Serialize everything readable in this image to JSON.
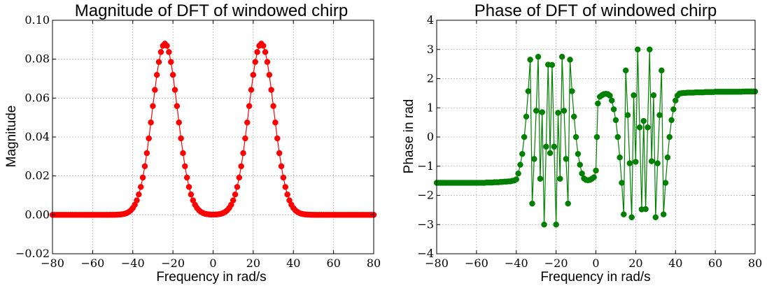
{
  "chart_data": [
    {
      "type": "line",
      "title": "Magnitude of DFT of windowed chirp",
      "xlabel": "Frequency in rad/s",
      "ylabel": "Magnitude",
      "xlim": [
        -80,
        80
      ],
      "ylim": [
        -0.02,
        0.1
      ],
      "xticks": [
        -80,
        -60,
        -40,
        -20,
        0,
        20,
        40,
        60,
        80
      ],
      "xtick_labels": [
        "−80",
        "−60",
        "−40",
        "−20",
        "0",
        "20",
        "40",
        "60",
        "80"
      ],
      "yticks": [
        -0.02,
        0.0,
        0.02,
        0.04,
        0.06,
        0.08,
        0.1
      ],
      "ytick_labels": [
        "−0.02",
        "0.00",
        "0.02",
        "0.04",
        "0.06",
        "0.08",
        "0.10"
      ],
      "grid": true,
      "color": "#ff0000",
      "marker": "circle",
      "model": {
        "kind": "twin_gaussian",
        "amplitude": 0.088,
        "center": 24,
        "sigma": 6.3,
        "step": 1
      },
      "series": [
        {
          "values": []
        }
      ]
    },
    {
      "type": "line",
      "title": "Phase of DFT of windowed chirp",
      "xlabel": "Frequency in rad/s",
      "ylabel": "Phase in rad",
      "xlim": [
        -80,
        80
      ],
      "ylim": [
        -4,
        4
      ],
      "xticks": [
        -80,
        -60,
        -40,
        -20,
        0,
        20,
        40,
        60,
        80
      ],
      "xtick_labels": [
        "−80",
        "−60",
        "−40",
        "−20",
        "0",
        "20",
        "40",
        "60",
        "80"
      ],
      "yticks": [
        -4,
        -3,
        -2,
        -1,
        0,
        1,
        2,
        3,
        4
      ],
      "ytick_labels": [
        "−4",
        "−3",
        "−2",
        "−1",
        "0",
        "1",
        "2",
        "3",
        "4"
      ],
      "grid": true,
      "color": "#008000",
      "marker": "circle",
      "series": [
        {
          "points": [
            [
              -80,
              -1.57
            ],
            [
              -79,
              -1.57
            ],
            [
              -78,
              -1.57
            ],
            [
              -77,
              -1.57
            ],
            [
              -76,
              -1.57
            ],
            [
              -75,
              -1.57
            ],
            [
              -74,
              -1.57
            ],
            [
              -73,
              -1.57
            ],
            [
              -72,
              -1.57
            ],
            [
              -71,
              -1.57
            ],
            [
              -70,
              -1.57
            ],
            [
              -69,
              -1.57
            ],
            [
              -68,
              -1.57
            ],
            [
              -67,
              -1.57
            ],
            [
              -66,
              -1.57
            ],
            [
              -65,
              -1.57
            ],
            [
              -64,
              -1.57
            ],
            [
              -63,
              -1.57
            ],
            [
              -62,
              -1.57
            ],
            [
              -61,
              -1.57
            ],
            [
              -60,
              -1.57
            ],
            [
              -59,
              -1.57
            ],
            [
              -58,
              -1.57
            ],
            [
              -57,
              -1.57
            ],
            [
              -56,
              -1.57
            ],
            [
              -55,
              -1.56
            ],
            [
              -54,
              -1.56
            ],
            [
              -53,
              -1.56
            ],
            [
              -52,
              -1.56
            ],
            [
              -51,
              -1.55
            ],
            [
              -50,
              -1.55
            ],
            [
              -49,
              -1.55
            ],
            [
              -48,
              -1.54
            ],
            [
              -47,
              -1.54
            ],
            [
              -46,
              -1.53
            ],
            [
              -45,
              -1.53
            ],
            [
              -44,
              -1.52
            ],
            [
              -43,
              -1.52
            ],
            [
              -42,
              -1.5
            ],
            [
              -41,
              -1.49
            ],
            [
              -40,
              -1.45
            ],
            [
              -39,
              -1.25
            ],
            [
              -38,
              -0.95
            ],
            [
              -37,
              -0.58
            ],
            [
              -36,
              0.0
            ],
            [
              -35,
              0.7
            ],
            [
              -34,
              1.57
            ],
            [
              -33,
              2.65
            ],
            [
              -32,
              -2.28
            ],
            [
              -31,
              -0.75
            ],
            [
              -30,
              0.9
            ],
            [
              -29,
              2.75
            ],
            [
              -28,
              -1.43
            ],
            [
              -27,
              0.85
            ],
            [
              -26,
              -3.0
            ],
            [
              -25,
              -0.33
            ],
            [
              -24,
              2.48
            ],
            [
              -23,
              -0.55
            ],
            [
              -22,
              2.47
            ],
            [
              -21,
              -0.33
            ],
            [
              -20,
              -3.0
            ],
            [
              -19,
              0.83
            ],
            [
              -18,
              -1.43
            ],
            [
              -17,
              2.75
            ],
            [
              -16,
              0.9
            ],
            [
              -15,
              -0.75
            ],
            [
              -14,
              -2.28
            ],
            [
              -13,
              2.65
            ],
            [
              -12,
              1.57
            ],
            [
              -11,
              0.7
            ],
            [
              -10,
              0.0
            ],
            [
              -9,
              -0.58
            ],
            [
              -8,
              -0.95
            ],
            [
              -7,
              -1.25
            ],
            [
              -6,
              -1.42
            ],
            [
              -5,
              -1.47
            ],
            [
              -4,
              -1.48
            ],
            [
              -3,
              -1.47
            ],
            [
              -2,
              -1.43
            ],
            [
              -1,
              -1.38
            ],
            [
              0,
              -1.15
            ],
            [
              0.5,
              0.0
            ],
            [
              1,
              1.15
            ],
            [
              2,
              1.38
            ],
            [
              3,
              1.43
            ],
            [
              4,
              1.47
            ],
            [
              5,
              1.48
            ],
            [
              6,
              1.47
            ],
            [
              7,
              1.42
            ],
            [
              8,
              1.25
            ],
            [
              9,
              0.95
            ],
            [
              10,
              0.58
            ],
            [
              11,
              0.0
            ],
            [
              12,
              -0.7
            ],
            [
              13,
              -1.57
            ],
            [
              14,
              -2.65
            ],
            [
              15,
              2.28
            ],
            [
              16,
              0.75
            ],
            [
              17,
              -0.9
            ],
            [
              18,
              -2.75
            ],
            [
              19,
              1.43
            ],
            [
              20,
              -0.85
            ],
            [
              21,
              3.0
            ],
            [
              22,
              0.33
            ],
            [
              23,
              -2.48
            ],
            [
              24,
              0.55
            ],
            [
              25,
              -2.47
            ],
            [
              26,
              0.33
            ],
            [
              27,
              3.0
            ],
            [
              28,
              -0.83
            ],
            [
              29,
              1.43
            ],
            [
              30,
              -2.75
            ],
            [
              31,
              -0.9
            ],
            [
              32,
              0.75
            ],
            [
              33,
              2.28
            ],
            [
              34,
              -2.65
            ],
            [
              35,
              -1.57
            ],
            [
              36,
              -0.7
            ],
            [
              37,
              0.0
            ],
            [
              38,
              0.58
            ],
            [
              39,
              0.95
            ],
            [
              40,
              1.25
            ],
            [
              41,
              1.42
            ],
            [
              42,
              1.49
            ],
            [
              43,
              1.5
            ],
            [
              44,
              1.51
            ],
            [
              45,
              1.51
            ],
            [
              46,
              1.52
            ],
            [
              47,
              1.52
            ],
            [
              48,
              1.52
            ],
            [
              49,
              1.52
            ],
            [
              50,
              1.53
            ],
            [
              51,
              1.53
            ],
            [
              52,
              1.53
            ],
            [
              53,
              1.53
            ],
            [
              54,
              1.53
            ],
            [
              55,
              1.54
            ],
            [
              56,
              1.54
            ],
            [
              57,
              1.54
            ],
            [
              58,
              1.54
            ],
            [
              59,
              1.54
            ],
            [
              60,
              1.55
            ],
            [
              61,
              1.55
            ],
            [
              62,
              1.55
            ],
            [
              63,
              1.55
            ],
            [
              64,
              1.55
            ],
            [
              65,
              1.55
            ],
            [
              66,
              1.55
            ],
            [
              67,
              1.55
            ],
            [
              68,
              1.55
            ],
            [
              69,
              1.55
            ],
            [
              70,
              1.55
            ],
            [
              71,
              1.55
            ],
            [
              72,
              1.55
            ],
            [
              73,
              1.55
            ],
            [
              74,
              1.56
            ],
            [
              75,
              1.56
            ],
            [
              76,
              1.56
            ],
            [
              77,
              1.56
            ],
            [
              78,
              1.56
            ],
            [
              79,
              1.56
            ],
            [
              80,
              1.56
            ]
          ]
        }
      ]
    }
  ]
}
